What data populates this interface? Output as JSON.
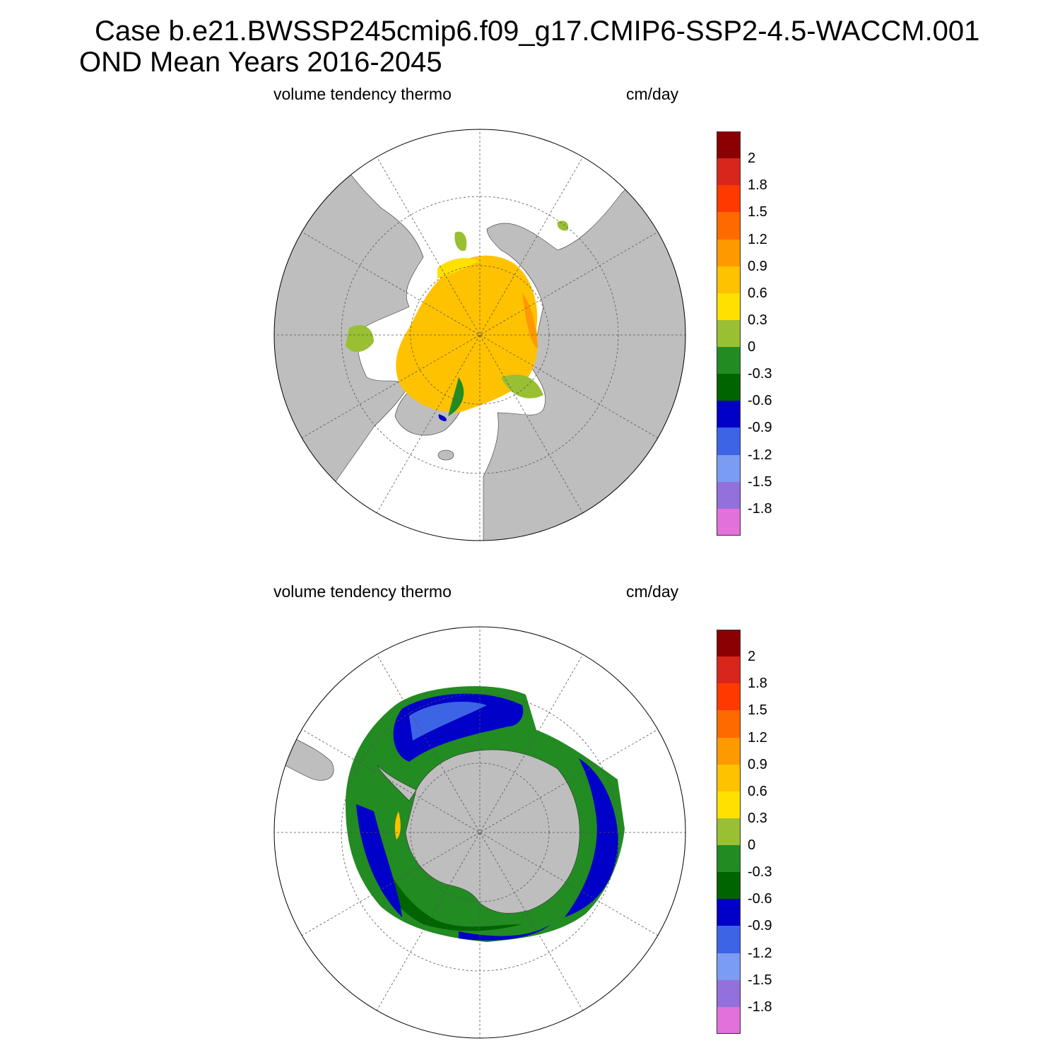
{
  "header": {
    "line1": "Case b.e21.BWSSP245cmip6.f09_g17.CMIP6-SSP2-4.5-WACCM.001",
    "line2": "OND Mean   Years 2016-2045"
  },
  "panels": [
    {
      "id": "north",
      "left_label": "volume tendency thermo",
      "right_label": "cm/day"
    },
    {
      "id": "south",
      "left_label": "volume tendency thermo",
      "right_label": "cm/day"
    }
  ],
  "colorbar": {
    "colors": [
      "#8b0000",
      "#d9261c",
      "#ff3a00",
      "#ff6a00",
      "#ff9900",
      "#ffc200",
      "#ffe000",
      "#99bf33",
      "#228b22",
      "#006400",
      "#0000c8",
      "#3e64e6",
      "#7a9cf2",
      "#9370db",
      "#e371dc"
    ],
    "labels": [
      "2",
      "1.8",
      "1.5",
      "1.2",
      "0.9",
      "0.6",
      "0.3",
      "0",
      "-0.3",
      "-0.6",
      "-0.9",
      "-1.2",
      "-1.5",
      "-1.8"
    ]
  },
  "palette": {
    "land": "#bebebe",
    "ocean": "#ffffff",
    "grid": "#555555"
  }
}
